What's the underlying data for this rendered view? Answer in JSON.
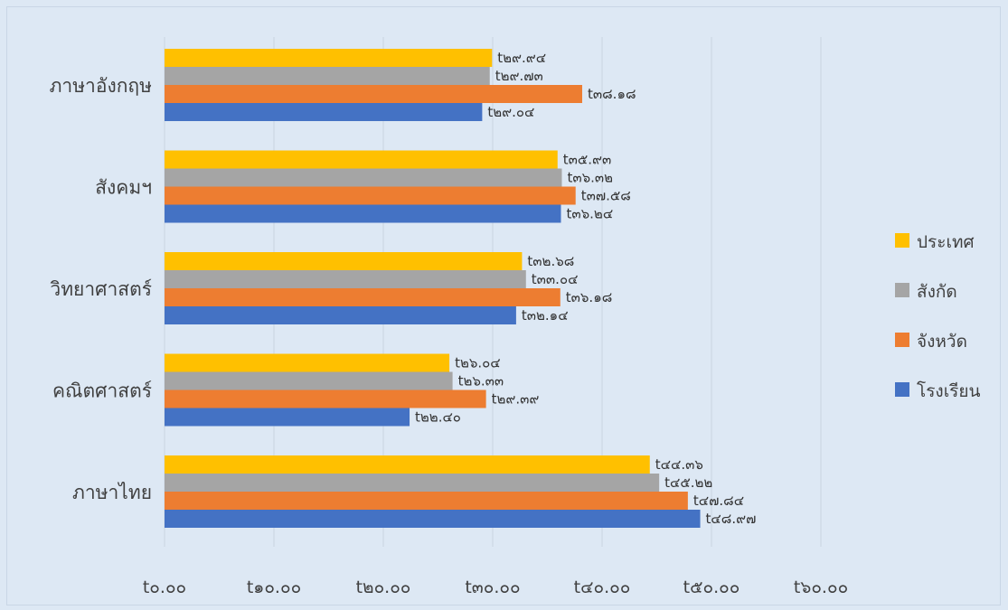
{
  "chart_data": {
    "type": "bar",
    "orientation": "horizontal",
    "categories": [
      "ภาษาอังกฤษ",
      "สังคมฯ",
      "วิทยาศาสตร์",
      "คณิตศาสตร์",
      "ภาษาไทย"
    ],
    "series": [
      {
        "name": "ประเทศ",
        "color": "#ffc000",
        "values": [
          29.94,
          35.93,
          32.68,
          26.04,
          44.36
        ],
        "labels": [
          "t๒๙.๙๔",
          "t๓๕.๙๓",
          "t๓๒.๖๘",
          "t๒๖.๐๔",
          "t๔๔.๓๖"
        ]
      },
      {
        "name": "สังกัด",
        "color": "#a5a5a5",
        "values": [
          29.73,
          36.32,
          33.04,
          26.33,
          45.22
        ],
        "labels": [
          "t๒๙.๗๓",
          "t๓๖.๓๒",
          "t๓๓.๐๔",
          "t๒๖.๓๓",
          "t๔๕.๒๒"
        ]
      },
      {
        "name": "จังหวัด",
        "color": "#ed7d31",
        "values": [
          38.18,
          37.58,
          36.18,
          29.39,
          47.84
        ],
        "labels": [
          "t๓๘.๑๘",
          "t๓๗.๕๘",
          "t๓๖.๑๘",
          "t๒๙.๓๙",
          "t๔๗.๘๔"
        ]
      },
      {
        "name": "โรงเรียน",
        "color": "#4472c4",
        "values": [
          29.04,
          36.24,
          32.14,
          22.4,
          48.97
        ],
        "labels": [
          "t๒๙.๐๔",
          "t๓๖.๒๔",
          "t๓๒.๑๔",
          "t๒๒.๔๐",
          "t๔๘.๙๗"
        ]
      }
    ],
    "xlim": [
      0,
      60
    ],
    "xticks": [
      0,
      10,
      20,
      30,
      40,
      50,
      60
    ],
    "xtick_labels": [
      "t๐.๐๐",
      "t๑๐.๐๐",
      "t๒๐.๐๐",
      "t๓๐.๐๐",
      "t๔๐.๐๐",
      "t๕๐.๐๐",
      "t๖๐.๐๐"
    ],
    "grid": "vertical",
    "legend_position": "right"
  }
}
